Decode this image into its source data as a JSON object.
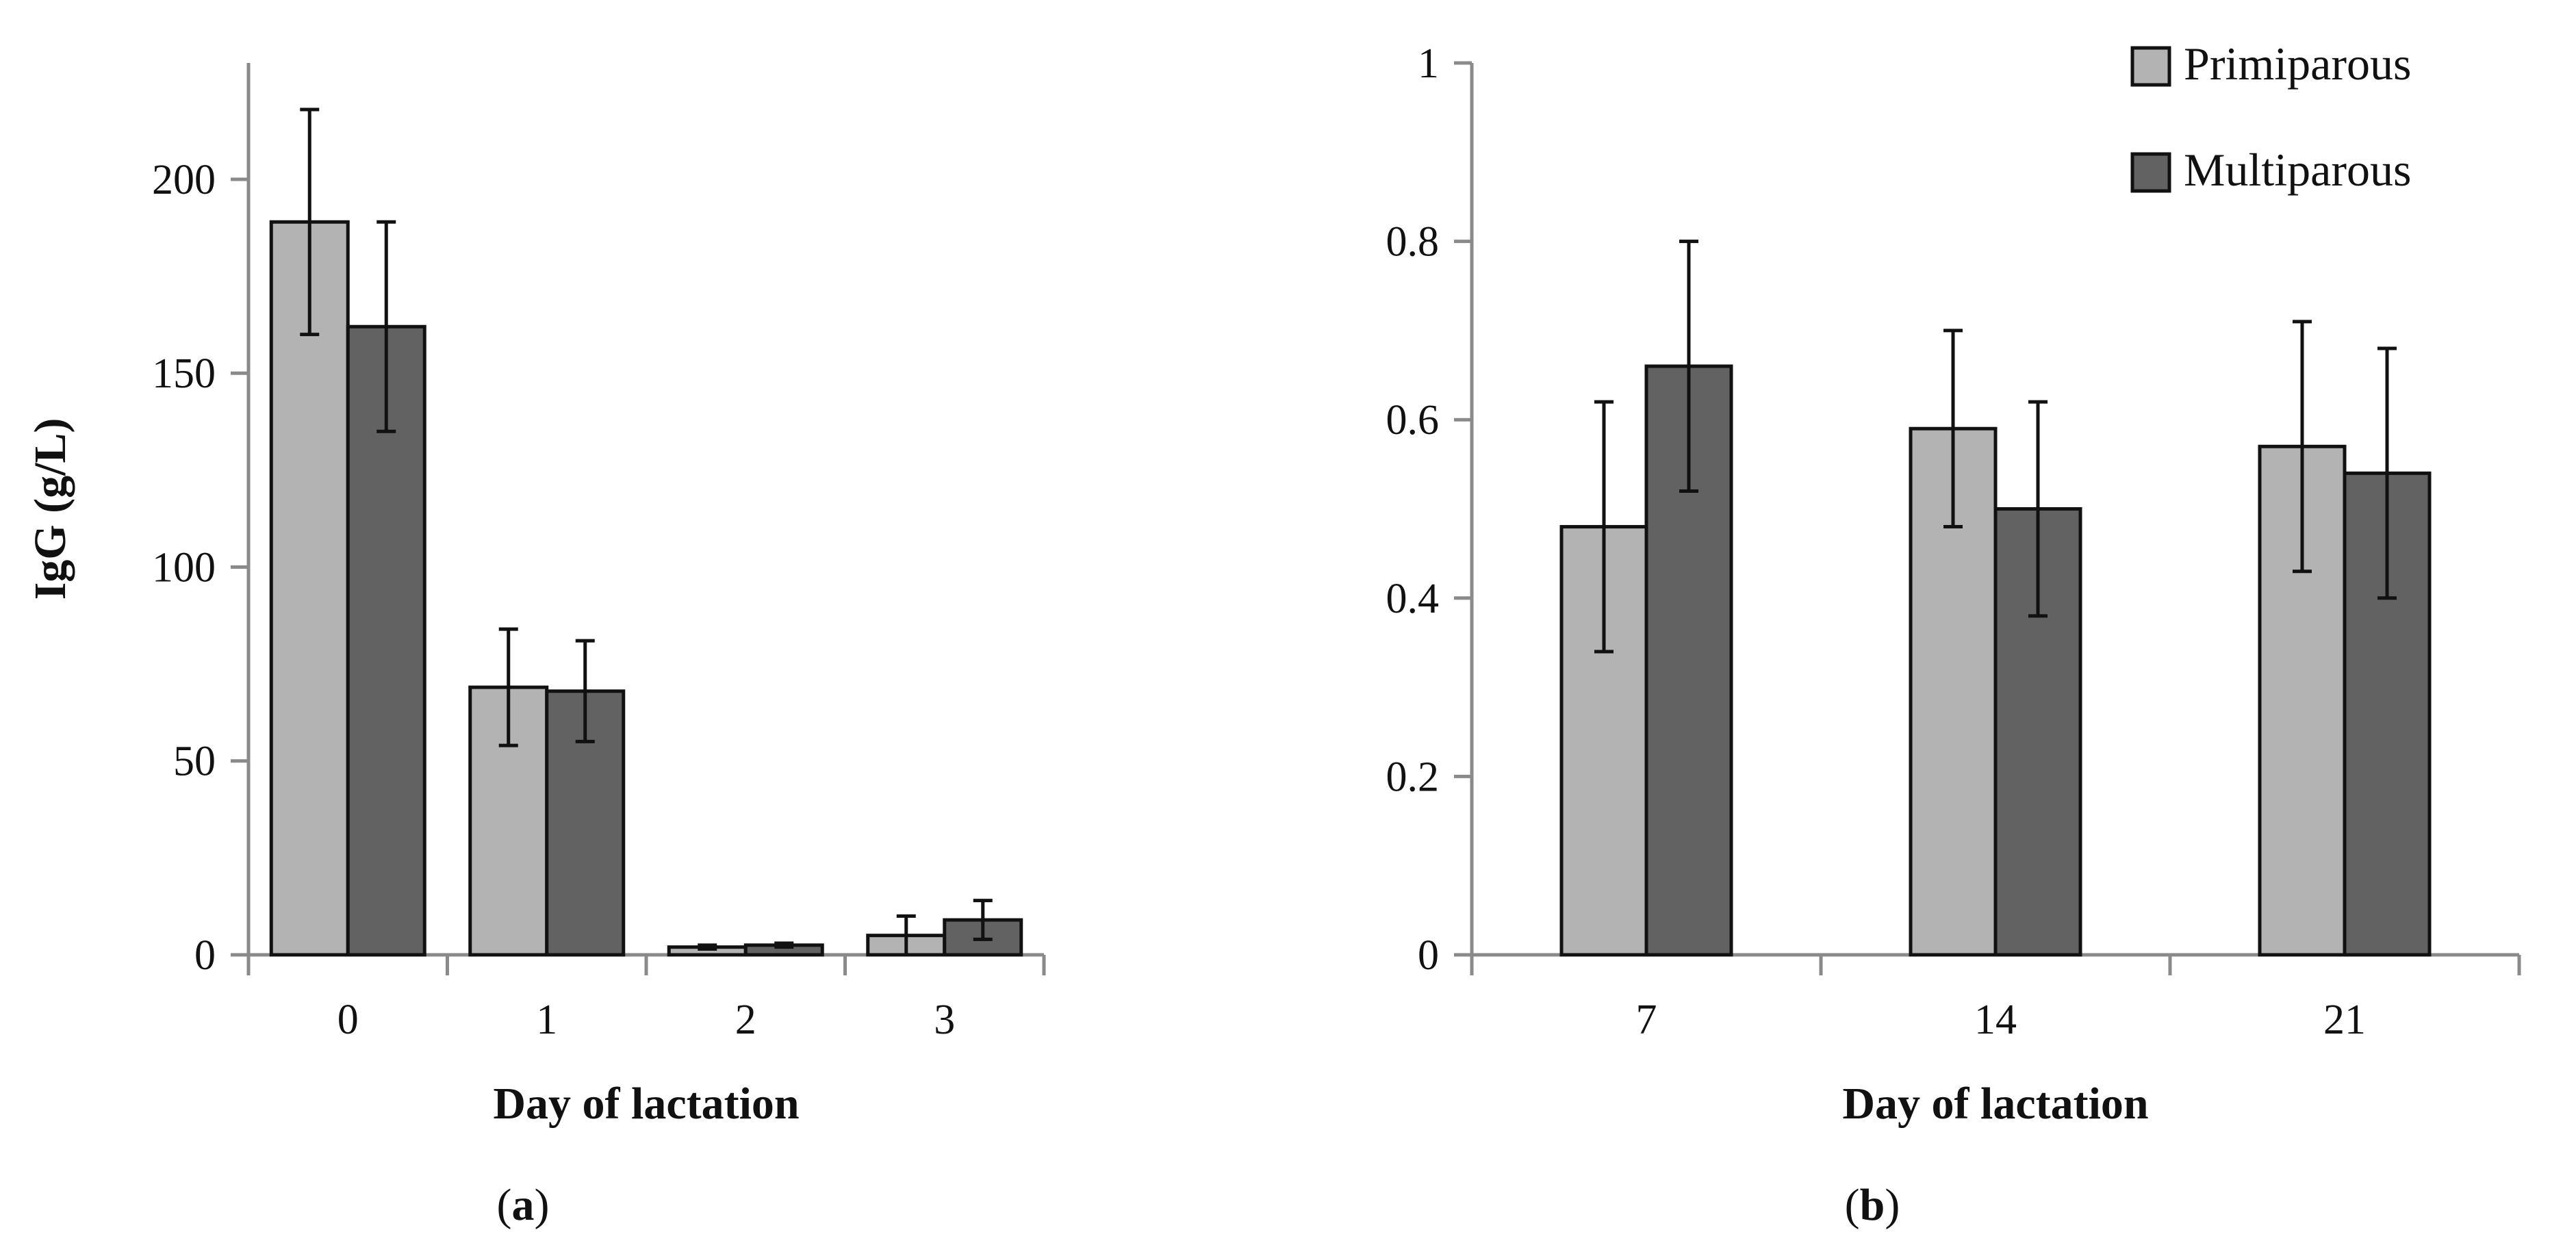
{
  "colors": {
    "primiparous": "#b3b3b3",
    "multiparous": "#626262",
    "axis": "#8a8a8a",
    "outline": "#111111"
  },
  "legend": {
    "position": "top-right",
    "items": [
      "Primiparous",
      "Multiparous"
    ]
  },
  "chart_data": [
    {
      "type": "bar",
      "panel_label": "(a)",
      "title": "",
      "xlabel": "Day of lactation",
      "ylabel": "IgG (g/L)",
      "ylim": [
        0,
        230
      ],
      "yticks": [
        0,
        50,
        100,
        150,
        200
      ],
      "categories": [
        "0",
        "1",
        "2",
        "3"
      ],
      "series": [
        {
          "name": "Primiparous",
          "values": [
            189,
            69,
            2,
            5
          ],
          "errors": [
            29,
            15,
            0.5,
            5
          ]
        },
        {
          "name": "Multiparous",
          "values": [
            162,
            68,
            2.5,
            9
          ],
          "errors": [
            27,
            13,
            0.5,
            5
          ]
        }
      ]
    },
    {
      "type": "bar",
      "panel_label": "(b)",
      "title": "",
      "xlabel": "Day of lactation",
      "ylabel": "",
      "ylim": [
        0,
        1
      ],
      "yticks": [
        "0",
        "0.2",
        "0.4",
        "0.6",
        "0.8",
        "1"
      ],
      "categories": [
        "7",
        "14",
        "21"
      ],
      "series": [
        {
          "name": "Primiparous",
          "values": [
            0.48,
            0.59,
            0.57
          ],
          "errors": [
            0.14,
            0.11,
            0.14
          ]
        },
        {
          "name": "Multiparous",
          "values": [
            0.66,
            0.5,
            0.54
          ],
          "errors": [
            0.14,
            0.12,
            0.14
          ]
        }
      ]
    }
  ]
}
